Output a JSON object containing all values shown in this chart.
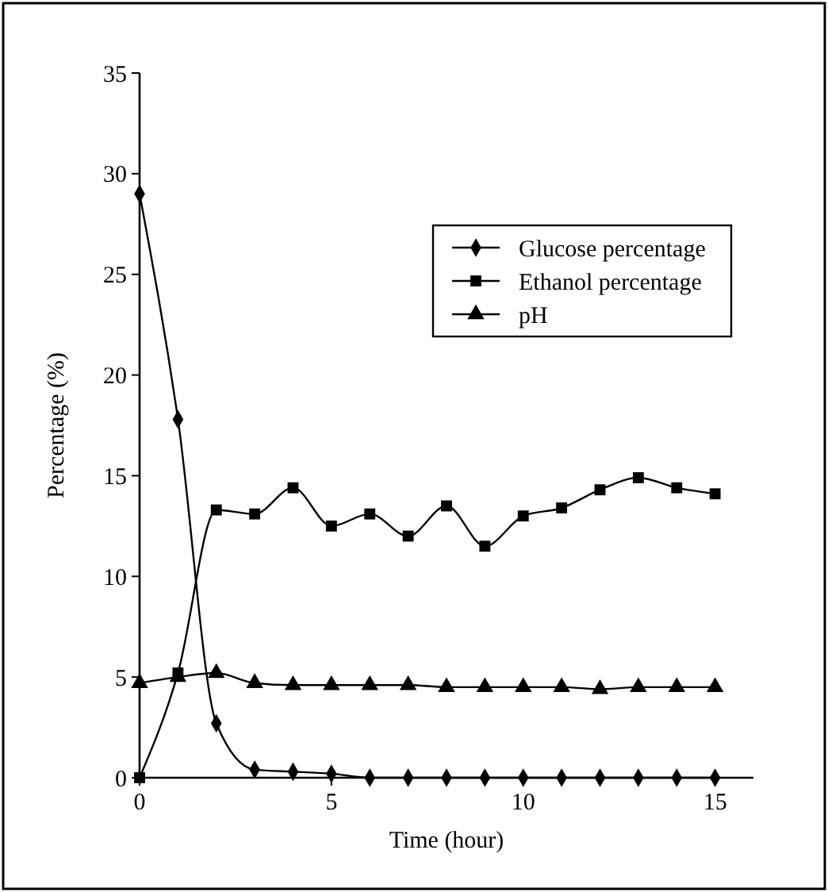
{
  "chart_data": {
    "type": "line",
    "xlabel": "Time (hour)",
    "ylabel": "Percentage (%)",
    "x": [
      0,
      1,
      2,
      3,
      4,
      5,
      6,
      7,
      8,
      9,
      10,
      11,
      12,
      13,
      14,
      15
    ],
    "xlim": [
      0,
      16
    ],
    "xticks": [
      0,
      5,
      10,
      15
    ],
    "ylim": [
      0,
      35
    ],
    "yticks": [
      0,
      5,
      10,
      15,
      20,
      25,
      30,
      35
    ],
    "grid": false,
    "legend": "right",
    "series": [
      {
        "name": "Glucose percentage",
        "color": "#000000",
        "marker": "diamond",
        "values": [
          29,
          17.8,
          2.7,
          0.4,
          0.3,
          0.2,
          0,
          0,
          0,
          0,
          0,
          0,
          0,
          0,
          0,
          0
        ]
      },
      {
        "name": "Ethanol percentage",
        "color": "#000000",
        "marker": "square",
        "values": [
          0,
          5.2,
          13.3,
          13.1,
          14.4,
          12.5,
          13.1,
          12.0,
          13.5,
          11.5,
          13.0,
          13.4,
          14.3,
          14.9,
          14.4,
          14.1
        ]
      },
      {
        "name": "pH",
        "color": "#000000",
        "marker": "triangle",
        "values": [
          4.7,
          5.0,
          5.2,
          4.7,
          4.6,
          4.6,
          4.6,
          4.6,
          4.5,
          4.5,
          4.5,
          4.5,
          4.4,
          4.5,
          4.5,
          4.5
        ]
      }
    ]
  }
}
